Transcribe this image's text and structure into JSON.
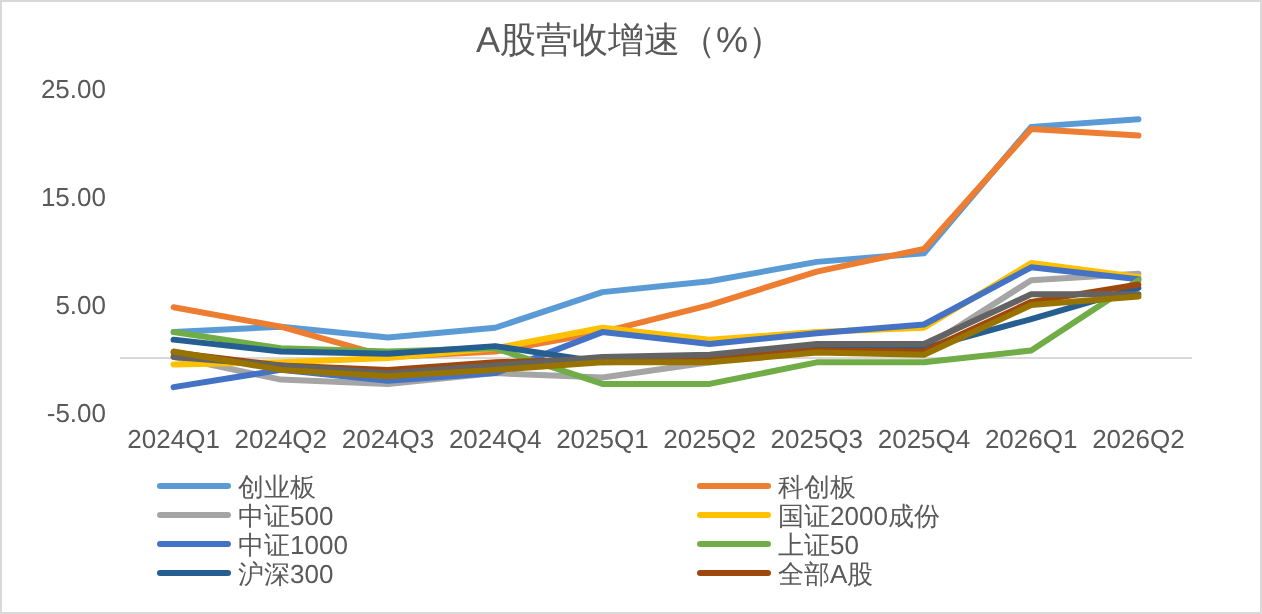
{
  "chart_data": {
    "type": "line",
    "title": "A股营收增速（%）",
    "categories": [
      "2024Q1",
      "2024Q2",
      "2024Q3",
      "2024Q4",
      "2025Q1",
      "2025Q2",
      "2025Q3",
      "2025Q4",
      "2026Q1",
      "2026Q2"
    ],
    "ylim": [
      -5,
      25
    ],
    "yticks": [
      {
        "value": -5,
        "label": "-5.00"
      },
      {
        "value": 5,
        "label": "5.00"
      },
      {
        "value": 15,
        "label": "15.00"
      },
      {
        "value": 25,
        "label": "25.00"
      }
    ],
    "legend": "bottom",
    "series": [
      {
        "name": "创业板",
        "color": "#5b9bd5",
        "values": [
          2.4,
          2.9,
          1.9,
          2.8,
          6.1,
          7.1,
          8.9,
          9.7,
          21.4,
          22.1
        ]
      },
      {
        "name": "科创板",
        "color": "#ed7d31",
        "values": [
          4.7,
          2.9,
          0.1,
          0.6,
          2.4,
          4.9,
          8.0,
          10.1,
          21.2,
          20.6
        ]
      },
      {
        "name": "中证500",
        "color": "#a5a5a5",
        "values": [
          0.1,
          -2.0,
          -2.4,
          -1.4,
          -1.8,
          -0.4,
          0.9,
          0.9,
          7.2,
          7.8
        ]
      },
      {
        "name": "国证2000成份",
        "color": "#ffc000",
        "values": [
          -0.6,
          -0.4,
          0,
          0.9,
          2.8,
          1.7,
          2.4,
          2.8,
          8.8,
          7.5
        ]
      },
      {
        "name": "中证1000",
        "color": "#4472c4",
        "values": [
          -2.7,
          -1.1,
          -2.1,
          -1.4,
          2.4,
          1.3,
          2.3,
          3.1,
          8.4,
          7.3
        ]
      },
      {
        "name": "上证50",
        "color": "#70ad47",
        "values": [
          2.4,
          0.9,
          0.6,
          0.9,
          -2.4,
          -2.4,
          -0.4,
          -0.4,
          0.7,
          7.2
        ]
      },
      {
        "name": "沪深300",
        "color": "#255e91",
        "values": [
          1.7,
          0.6,
          0.4,
          1.1,
          -0.4,
          -0.2,
          0.9,
          0.9,
          3.6,
          6.5
        ]
      },
      {
        "name": "全部A股",
        "color": "#9e480e",
        "values": [
          0.5,
          -0.7,
          -1.1,
          -0.4,
          -0.1,
          0.1,
          0.7,
          0.6,
          5.2,
          6.8
        ]
      },
      {
        "color": "#636363",
        "values": [
          0.1,
          -0.7,
          -1.4,
          -0.7,
          0.1,
          0.3,
          1.3,
          1.3,
          5.9,
          5.9
        ]
      },
      {
        "color": "#997300",
        "values": [
          0.6,
          -1.1,
          -1.7,
          -1.1,
          -0.4,
          -0.4,
          0.5,
          0.3,
          4.9,
          5.7
        ]
      }
    ]
  }
}
